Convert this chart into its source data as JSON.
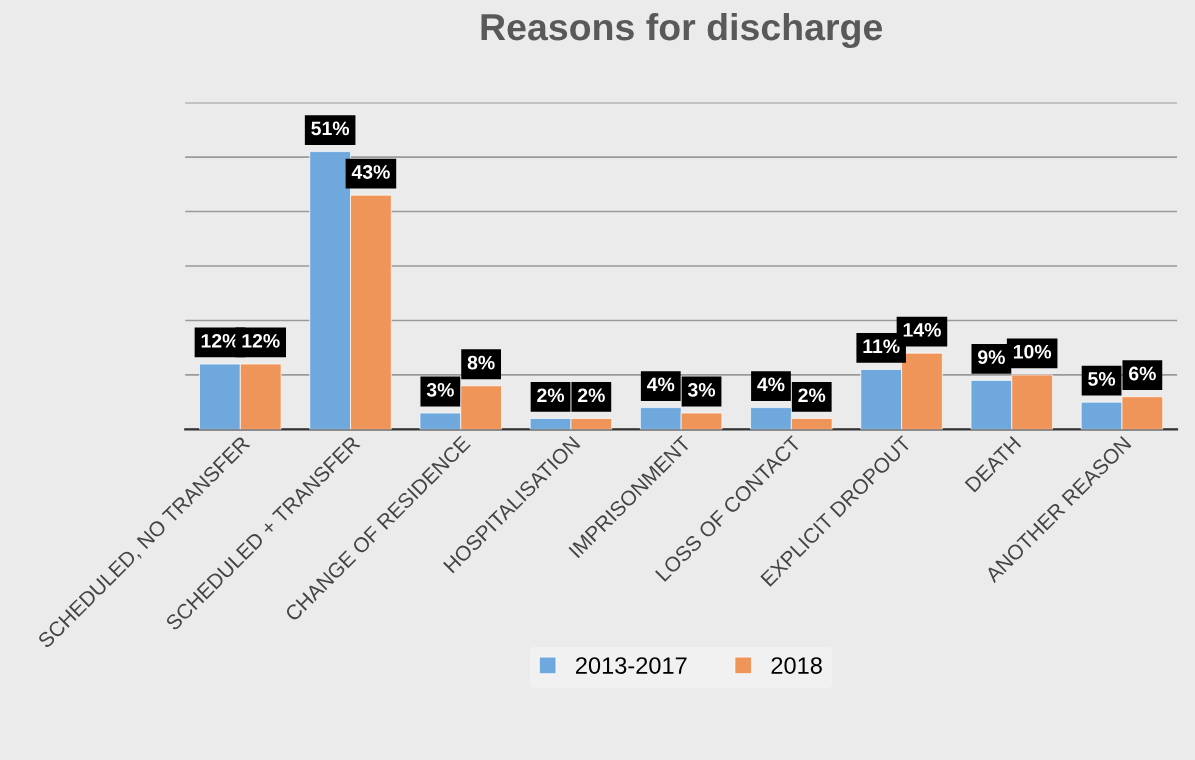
{
  "chart_data": {
    "type": "bar",
    "title": "Reasons for discharge",
    "categories": [
      "SCHEDULED, NO TRANSFER",
      "SCHEDULED + TRANSFER",
      "CHANGE OF RESIDENCE",
      "HOSPITALISATION",
      "IMPRISONMENT",
      "LOSS OF CONTACT",
      "EXPLICIT DROPOUT",
      "DEATH",
      "ANOTHER REASON"
    ],
    "series": [
      {
        "name": "2013-2017",
        "color": "#6fa8dc",
        "values": [
          12,
          51,
          3,
          2,
          4,
          4,
          11,
          9,
          5
        ],
        "value_labels": [
          "12%",
          "51%",
          "3%",
          "2%",
          "4%",
          "4%",
          "11%",
          "9%",
          "5%"
        ]
      },
      {
        "name": "2018",
        "color": "#f0955a",
        "values": [
          12,
          43,
          8,
          2,
          3,
          2,
          14,
          10,
          6
        ],
        "value_labels": [
          "12%",
          "43%",
          "8%",
          "2%",
          "3%",
          "2%",
          "14%",
          "10%",
          "6%"
        ]
      }
    ],
    "ylim": [
      0,
      60
    ],
    "yticks": [
      {
        "value": 0,
        "label": null
      },
      {
        "value": 10,
        "label": null
      },
      {
        "value": 20,
        "label": null
      },
      {
        "value": 30,
        "label": null
      },
      {
        "value": 40,
        "label": null
      },
      {
        "value": 50,
        "label": null
      },
      {
        "value": 60,
        "label": null
      }
    ],
    "tick_labels": "x",
    "grid": "y",
    "legend": "bottom"
  }
}
